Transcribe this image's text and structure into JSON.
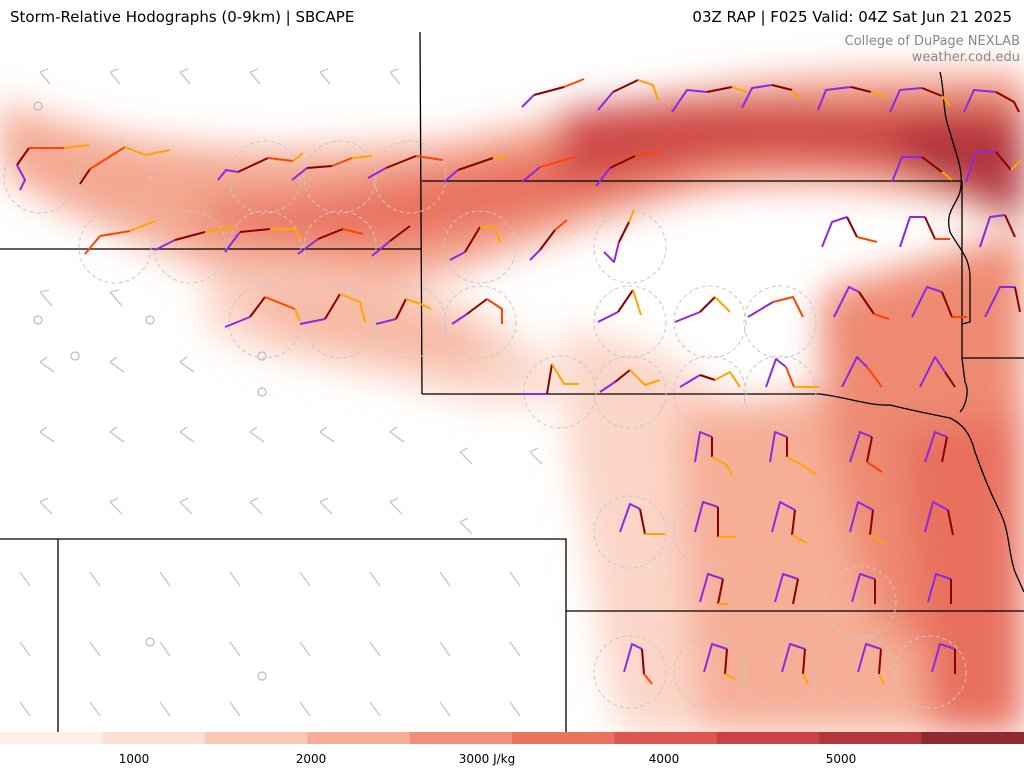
{
  "header": {
    "left_title": "Storm-Relative Hodographs (0-9km) | SBCAPE",
    "right_title": "03Z RAP | F025 Valid: 04Z Sat Jun 21 2025"
  },
  "credit": {
    "line1": "College of DuPage NEXLAB",
    "line2": "weather.cod.edu"
  },
  "colorbar": {
    "labels": [
      "1000",
      "2000",
      "3000 J/kg",
      "4000",
      "5000"
    ],
    "colors": [
      "#fdf0ea",
      "#fce0d4",
      "#f9c9b6",
      "#f6ae97",
      "#f19079",
      "#ea7260",
      "#de5650",
      "#cb4246",
      "#b2363d",
      "#8f2a30"
    ]
  },
  "hodograph_colors": [
    "#8a2be2",
    "#8b0000",
    "#ff4500",
    "#ffa500"
  ]
}
